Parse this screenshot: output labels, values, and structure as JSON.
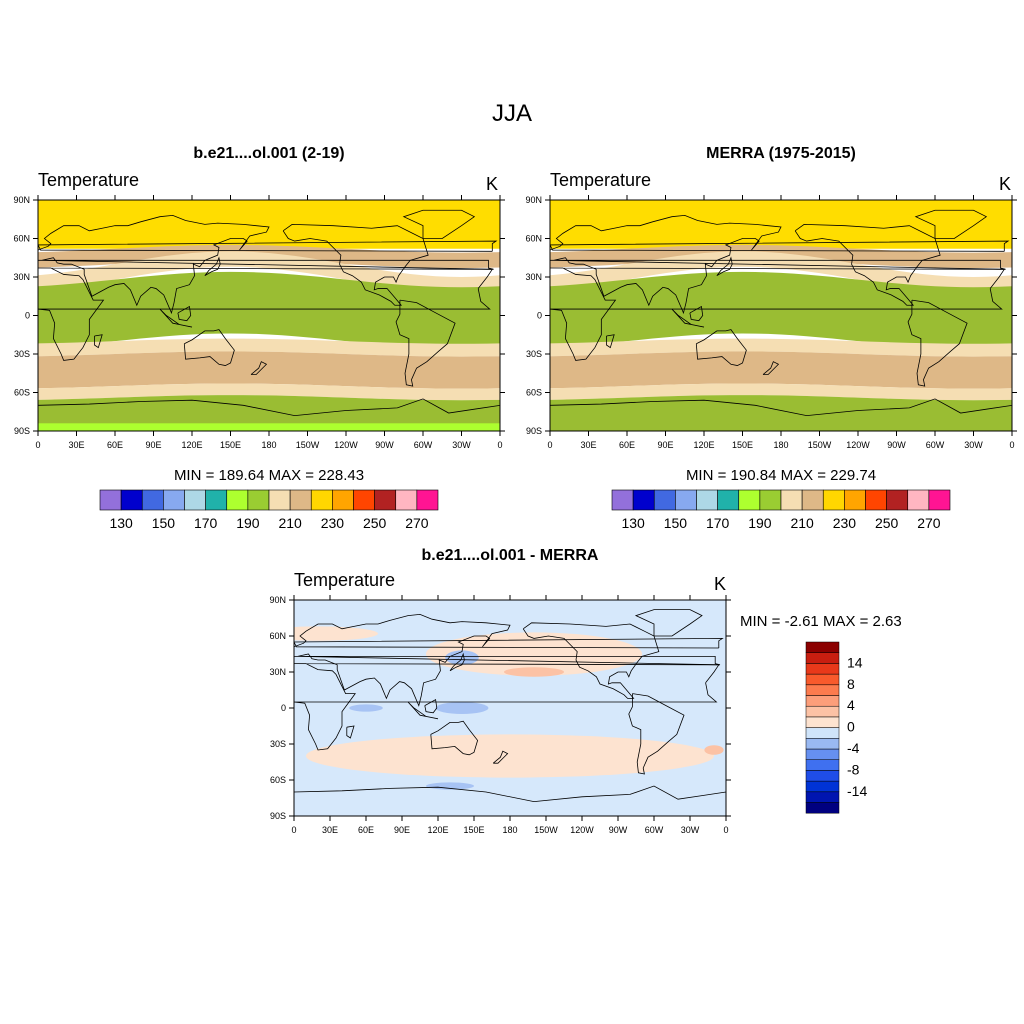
{
  "figure": {
    "title": "JJA"
  },
  "panels": [
    {
      "title": "b.e21....ol.001 (2-19)",
      "variable": "Temperature",
      "units": "K",
      "stats": "MIN = 189.64  MAX = 228.43",
      "lat_ticks": [
        "90N",
        "60N",
        "30N",
        "0",
        "30S",
        "60S",
        "90S"
      ],
      "lon_ticks": [
        "0",
        "30E",
        "60E",
        "90E",
        "120E",
        "150E",
        "180",
        "150W",
        "120W",
        "90W",
        "60W",
        "30W",
        "0"
      ]
    },
    {
      "title": "MERRA (1975-2015)",
      "variable": "Temperature",
      "units": "K",
      "stats": "MIN = 190.84  MAX = 229.74",
      "lat_ticks": [
        "90N",
        "60N",
        "30N",
        "0",
        "30S",
        "60S",
        "90S"
      ],
      "lon_ticks": [
        "0",
        "30E",
        "60E",
        "90E",
        "120E",
        "150E",
        "180",
        "150W",
        "120W",
        "90W",
        "60W",
        "30W",
        "0"
      ]
    },
    {
      "title": "b.e21....ol.001 - MERRA",
      "variable": "Temperature",
      "units": "K",
      "stats": "MIN =  -2.61  MAX =   2.63",
      "lat_ticks": [
        "90N",
        "60N",
        "30N",
        "0",
        "30S",
        "60S",
        "90S"
      ],
      "lon_ticks": [
        "0",
        "30E",
        "60E",
        "90E",
        "120E",
        "150E",
        "180",
        "150W",
        "120W",
        "90W",
        "60W",
        "30W",
        "0"
      ]
    }
  ],
  "colorbar_abs": {
    "colors": [
      "#9370db",
      "#0000cd",
      "#4169e1",
      "#87a9f0",
      "#add8e6",
      "#20b2aa",
      "#adff2f",
      "#9acd32",
      "#f5deb3",
      "#deb887",
      "#ffd700",
      "#ffa500",
      "#ff4500",
      "#b22222",
      "#ffb6c1",
      "#ff1493"
    ],
    "labels": [
      "130",
      "150",
      "170",
      "190",
      "210",
      "230",
      "250",
      "270"
    ]
  },
  "colorbar_diff": {
    "colors": [
      "#000080",
      "#0015b0",
      "#0033d6",
      "#1f4de8",
      "#3f70f0",
      "#6690f0",
      "#99b9f2",
      "#cfe4fa",
      "#fde3d0",
      "#fcc2a5",
      "#fc9e7a",
      "#fc7b4e",
      "#f85a2c",
      "#e8391a",
      "#c81e10",
      "#8b0000"
    ],
    "labels": [
      "14",
      "8",
      "4",
      "0",
      "-4",
      "-8",
      "-14"
    ]
  },
  "fill_colors": {
    "yellow": "#ffdd00",
    "tan": "#deb887",
    "wheat": "#f5deb3",
    "green": "#9abd33",
    "lightgreen": "#adff2f",
    "diff_blue": "#d6e8fb",
    "diff_pink": "#fde3d0",
    "diff_salmon": "#fcc2a5",
    "diff_mid_blue": "#a7c3f4"
  }
}
